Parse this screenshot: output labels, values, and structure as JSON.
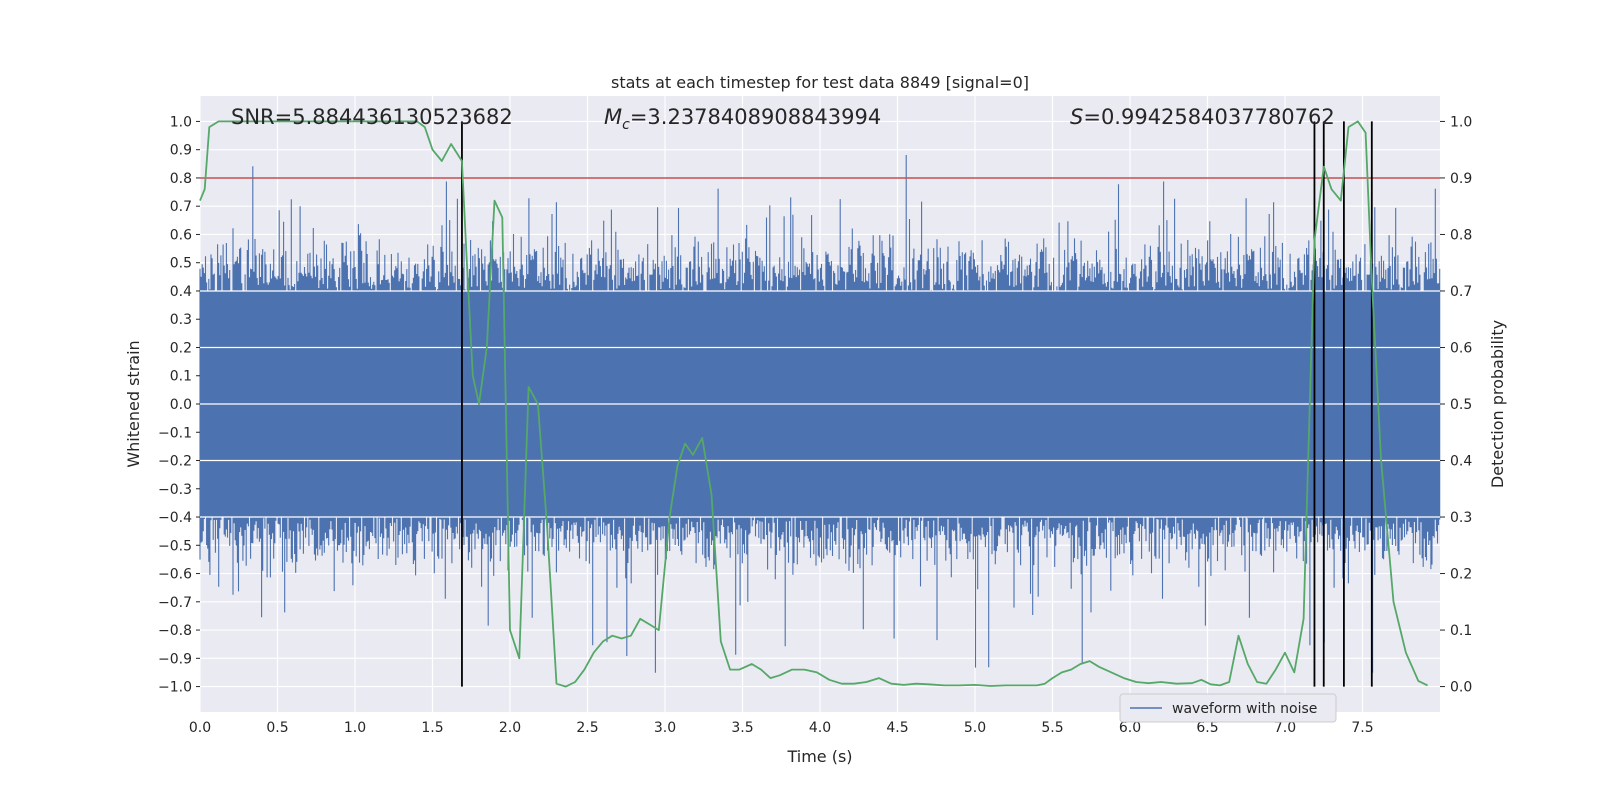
{
  "chart_data": {
    "type": "line",
    "title": "stats at each timestep for test data 8849 [signal=0]",
    "xlabel": "Time (s)",
    "ylabel_left": "Whitened strain",
    "ylabel_right": "Detection probability",
    "xlim": [
      0,
      8
    ],
    "ylim_left": [
      -1.09,
      1.09
    ],
    "ylim_right": [
      -0.045,
      1.045
    ],
    "x_ticks": [
      "0.0",
      "0.5",
      "1.0",
      "1.5",
      "2.0",
      "2.5",
      "3.0",
      "3.5",
      "4.0",
      "4.5",
      "5.0",
      "5.5",
      "6.0",
      "6.5",
      "7.0",
      "7.5"
    ],
    "x_tick_values": [
      0,
      0.5,
      1,
      1.5,
      2,
      2.5,
      3,
      3.5,
      4,
      4.5,
      5,
      5.5,
      6,
      6.5,
      7,
      7.5
    ],
    "y_left_ticks": [
      "1.0",
      "0.9",
      "0.8",
      "0.7",
      "0.6",
      "0.5",
      "0.4",
      "0.3",
      "0.2",
      "0.1",
      "0.0",
      "−0.1",
      "−0.2",
      "−0.3",
      "−0.4",
      "−0.5",
      "−0.6",
      "−0.7",
      "−0.8",
      "−0.9",
      "−1.0"
    ],
    "y_left_tick_values": [
      1.0,
      0.9,
      0.8,
      0.7,
      0.6,
      0.5,
      0.4,
      0.3,
      0.2,
      0.1,
      0.0,
      -0.1,
      -0.2,
      -0.3,
      -0.4,
      -0.5,
      -0.6,
      -0.7,
      -0.8,
      -0.9,
      -1.0
    ],
    "y_right_ticks": [
      "1.0",
      "0.9",
      "0.8",
      "0.7",
      "0.6",
      "0.5",
      "0.4",
      "0.3",
      "0.2",
      "0.1",
      "0.0"
    ],
    "y_right_tick_values": [
      1.0,
      0.9,
      0.8,
      0.7,
      0.6,
      0.5,
      0.4,
      0.3,
      0.2,
      0.1,
      0.0
    ],
    "grid": true,
    "annotations": {
      "snr": "SNR=5.884436130523682",
      "mc_symbol": "M",
      "mc_sub": "c",
      "mc_value": "=3.2378408908843994",
      "s_symbol": "S",
      "s_value": "=0.9942584037780762"
    },
    "threshold": {
      "value": 0.9,
      "axis": "right",
      "color": "#c44e52"
    },
    "vertical_lines_x": [
      1.69,
      7.19,
      7.25,
      7.38,
      7.56
    ],
    "legend": {
      "entries": [
        "waveform with noise"
      ],
      "placement": "lower-right"
    },
    "series": [
      {
        "name": "waveform with noise",
        "axis": "left",
        "color": "#4c72b0",
        "kind": "noisy-waveform",
        "approx_envelope": {
          "typical_abs": 0.4,
          "max": 1.0,
          "min": -0.99
        }
      },
      {
        "name": "detection probability",
        "axis": "right",
        "color": "#55a868",
        "x": [
          0.0,
          0.03,
          0.06,
          0.12,
          0.2,
          0.4,
          0.6,
          0.8,
          1.0,
          1.2,
          1.4,
          1.45,
          1.5,
          1.56,
          1.62,
          1.69,
          1.72,
          1.76,
          1.8,
          1.85,
          1.9,
          1.95,
          2.0,
          2.06,
          2.12,
          2.18,
          2.24,
          2.3,
          2.36,
          2.42,
          2.48,
          2.54,
          2.6,
          2.66,
          2.72,
          2.78,
          2.84,
          2.9,
          2.96,
          3.03,
          3.08,
          3.13,
          3.18,
          3.24,
          3.3,
          3.36,
          3.42,
          3.48,
          3.56,
          3.62,
          3.68,
          3.74,
          3.82,
          3.9,
          3.98,
          4.06,
          4.14,
          4.22,
          4.3,
          4.38,
          4.46,
          4.54,
          4.62,
          4.7,
          4.8,
          4.9,
          5.0,
          5.1,
          5.2,
          5.3,
          5.4,
          5.45,
          5.5,
          5.56,
          5.62,
          5.68,
          5.74,
          5.8,
          5.88,
          5.96,
          6.04,
          6.12,
          6.2,
          6.3,
          6.4,
          6.46,
          6.52,
          6.58,
          6.64,
          6.7,
          6.76,
          6.82,
          6.88,
          6.94,
          7.0,
          7.06,
          7.12,
          7.19,
          7.25,
          7.3,
          7.36,
          7.41,
          7.47,
          7.52,
          7.56,
          7.62,
          7.7,
          7.78,
          7.86,
          7.92
        ],
        "y": [
          0.86,
          0.88,
          0.99,
          1.0,
          1.0,
          1.0,
          1.0,
          1.0,
          1.0,
          1.0,
          1.0,
          0.99,
          0.95,
          0.93,
          0.96,
          0.93,
          0.76,
          0.55,
          0.5,
          0.6,
          0.86,
          0.83,
          0.1,
          0.05,
          0.53,
          0.5,
          0.28,
          0.005,
          0.0,
          0.008,
          0.03,
          0.06,
          0.08,
          0.09,
          0.085,
          0.09,
          0.12,
          0.11,
          0.1,
          0.3,
          0.39,
          0.43,
          0.41,
          0.44,
          0.34,
          0.08,
          0.03,
          0.03,
          0.04,
          0.03,
          0.015,
          0.02,
          0.03,
          0.03,
          0.025,
          0.012,
          0.005,
          0.005,
          0.008,
          0.015,
          0.005,
          0.003,
          0.005,
          0.004,
          0.002,
          0.002,
          0.003,
          0.001,
          0.002,
          0.002,
          0.002,
          0.005,
          0.015,
          0.025,
          0.03,
          0.04,
          0.045,
          0.035,
          0.025,
          0.015,
          0.008,
          0.006,
          0.008,
          0.005,
          0.006,
          0.012,
          0.004,
          0.002,
          0.008,
          0.09,
          0.04,
          0.008,
          0.005,
          0.03,
          0.06,
          0.025,
          0.12,
          0.79,
          0.92,
          0.88,
          0.86,
          0.99,
          1.0,
          0.98,
          0.72,
          0.4,
          0.15,
          0.06,
          0.01,
          0.002
        ]
      }
    ]
  }
}
